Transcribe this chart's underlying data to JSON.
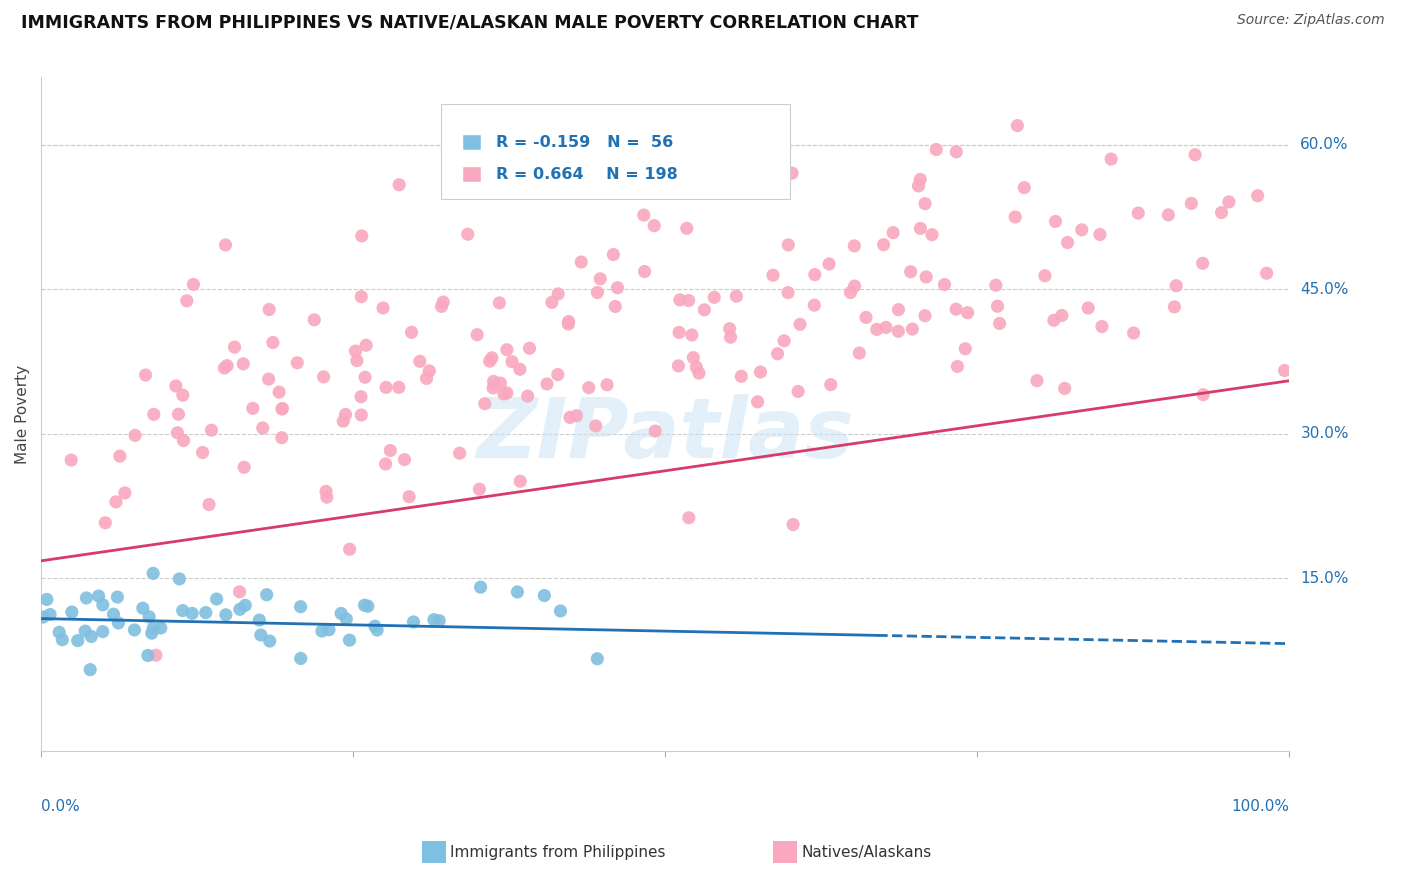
{
  "title": "IMMIGRANTS FROM PHILIPPINES VS NATIVE/ALASKAN MALE POVERTY CORRELATION CHART",
  "source": "Source: ZipAtlas.com",
  "ylabel": "Male Poverty",
  "ytick_vals": [
    0.15,
    0.3,
    0.45,
    0.6
  ],
  "ytick_labels": [
    "15.0%",
    "30.0%",
    "45.0%",
    "60.0%"
  ],
  "legend_blue_label": "Immigrants from Philippines",
  "legend_pink_label": "Natives/Alaskans",
  "blue_color": "#7fbfdf",
  "pink_color": "#f9a8bf",
  "blue_line_color": "#2171b5",
  "pink_line_color": "#d63b6a",
  "text_color": "#2171b5",
  "grid_color": "#cccccc",
  "bg_color": "#ffffff",
  "watermark": "ZIPatlas",
  "xlim": [
    0.0,
    1.0
  ],
  "ylim": [
    -0.03,
    0.67
  ],
  "blue_trend_y_start": 0.108,
  "blue_trend_y_end": 0.082,
  "blue_trend_solid_end": 0.67,
  "pink_trend_y_start": 0.168,
  "pink_trend_y_end": 0.355
}
